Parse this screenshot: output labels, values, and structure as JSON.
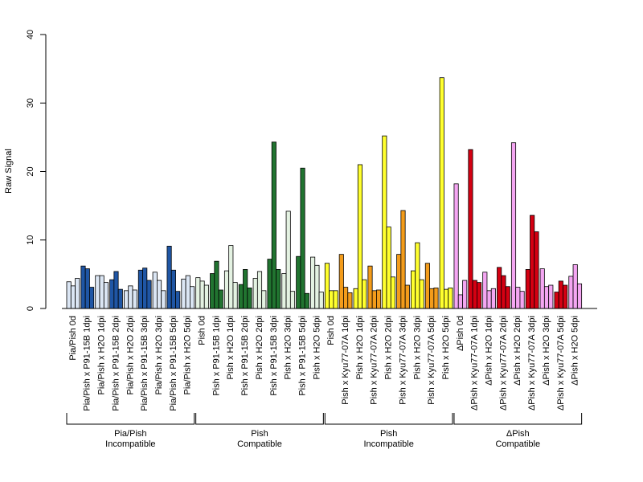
{
  "chart_data": {
    "type": "bar",
    "ylabel": "Raw Signal",
    "xlabel": "",
    "ylim": [
      0,
      40
    ],
    "yticks": [
      0,
      10,
      20,
      30,
      40
    ],
    "replicates": 3,
    "categories": [
      "Pia/Pish 0d",
      "Pia/Pish x P91-15B 1dpi",
      "Pia/Pish x H2O 1dpi",
      "Pia/Pish x P91-15B 2dpi",
      "Pia/Pish x H2O 2dpi",
      "Pia/Pish x P91-15B 3dpi",
      "Pia/Pish x H2O 3dpi",
      "Pia/Pish x P91-15B 5dpi",
      "Pia/Pish x H2O 5dpi",
      "Pish 0d",
      "Pish x P91-15B 1dpi",
      "Pish x H2O 1dpi",
      "Pish x P91-15B 2dpi",
      "Pish x H2O 2dpi",
      "Pish x P91-15B 3dpi",
      "Pish x H2O 3dpi",
      "Pish x P91-15B 5dpi",
      "Pish x H2O 5dpi",
      "Pish 0d",
      "Pish x Kyu77-07A 1dpi",
      "Pish x H2O 1dpi",
      "Pish x Kyu77-07A 2dpi",
      "Pish x H2O 2dpi",
      "Pish x Kyu77-07A 3dpi",
      "Pish x H2O 3dpi",
      "Pish x Kyu77-07A 5dpi",
      "Pish x H2O 5dpi",
      "ΔPish 0d",
      "ΔPish x Kyu77-07A 1dpi",
      "ΔPish x H2O 1dpi",
      "ΔPish x Kyu77-07A 2dpi",
      "ΔPish x H2O 2dpi",
      "ΔPish x Kyu77-07A 3dpi",
      "ΔPish x H2O 3dpi",
      "ΔPish x Kyu77-07A 5dpi",
      "ΔPish x H2O 5dpi"
    ],
    "values": [
      [
        3.9,
        3.3,
        4.4
      ],
      [
        6.2,
        5.8,
        3.1
      ],
      [
        4.8,
        4.8,
        3.8
      ],
      [
        4.2,
        5.4,
        2.8
      ],
      [
        2.6,
        3.3,
        2.7
      ],
      [
        5.6,
        5.9,
        4.1
      ],
      [
        5.3,
        4.1,
        2.6
      ],
      [
        9.1,
        5.6,
        2.5
      ],
      [
        4.3,
        4.8,
        3.2
      ],
      [
        4.5,
        4.0,
        3.4
      ],
      [
        5.1,
        6.9,
        2.7
      ],
      [
        5.5,
        9.2,
        3.8
      ],
      [
        3.5,
        5.7,
        3.0
      ],
      [
        4.4,
        5.4,
        2.6
      ],
      [
        7.2,
        24.3,
        5.7
      ],
      [
        5.1,
        14.2,
        2.5
      ],
      [
        7.6,
        20.5,
        2.2
      ],
      [
        7.5,
        6.3,
        2.4
      ],
      [
        6.6,
        2.6,
        2.6
      ],
      [
        7.9,
        3.1,
        2.3
      ],
      [
        2.9,
        21.0,
        4.2
      ],
      [
        6.2,
        2.6,
        2.7
      ],
      [
        25.2,
        11.9,
        4.6
      ],
      [
        7.9,
        14.3,
        3.4
      ],
      [
        5.5,
        9.6,
        4.2
      ],
      [
        6.6,
        2.9,
        3.0
      ],
      [
        33.7,
        2.8,
        3.0
      ],
      [
        18.2,
        2.0,
        4.1
      ],
      [
        23.2,
        4.1,
        3.8
      ],
      [
        5.3,
        2.6,
        2.9
      ],
      [
        6.0,
        4.8,
        3.2
      ],
      [
        24.2,
        3.1,
        2.5
      ],
      [
        5.7,
        13.6,
        11.2
      ],
      [
        5.8,
        3.2,
        3.4
      ],
      [
        2.4,
        4.0,
        3.4
      ],
      [
        4.7,
        6.4,
        3.6
      ]
    ],
    "colors": [
      "#dbe6f4",
      "#1f56a5",
      "#dbe6f4",
      "#1f56a5",
      "#dbe6f4",
      "#1f56a5",
      "#dbe6f4",
      "#1f56a5",
      "#dbe6f4",
      "#e4f2e2",
      "#217430",
      "#e4f2e2",
      "#217430",
      "#e4f2e2",
      "#217430",
      "#e4f2e2",
      "#217430",
      "#e4f2e2",
      "#ffff2e",
      "#f39c1b",
      "#ffff2e",
      "#f39c1b",
      "#ffff2e",
      "#f39c1b",
      "#ffff2e",
      "#f39c1b",
      "#ffff2e",
      "#f4a6f2",
      "#d40012",
      "#f4a6f2",
      "#d40012",
      "#f4a6f2",
      "#d40012",
      "#f4a6f2",
      "#d40012",
      "#f4a6f2"
    ],
    "groups": [
      {
        "line1": "Pia/Pish",
        "line2": "Incompatible",
        "start": 0,
        "end": 8
      },
      {
        "line1": "Pish",
        "line2": "Compatible",
        "start": 9,
        "end": 17
      },
      {
        "line1": "Pish",
        "line2": "Incompatible",
        "start": 18,
        "end": 26
      },
      {
        "line1": "ΔPish",
        "line2": "Compatible",
        "start": 27,
        "end": 35
      }
    ]
  }
}
